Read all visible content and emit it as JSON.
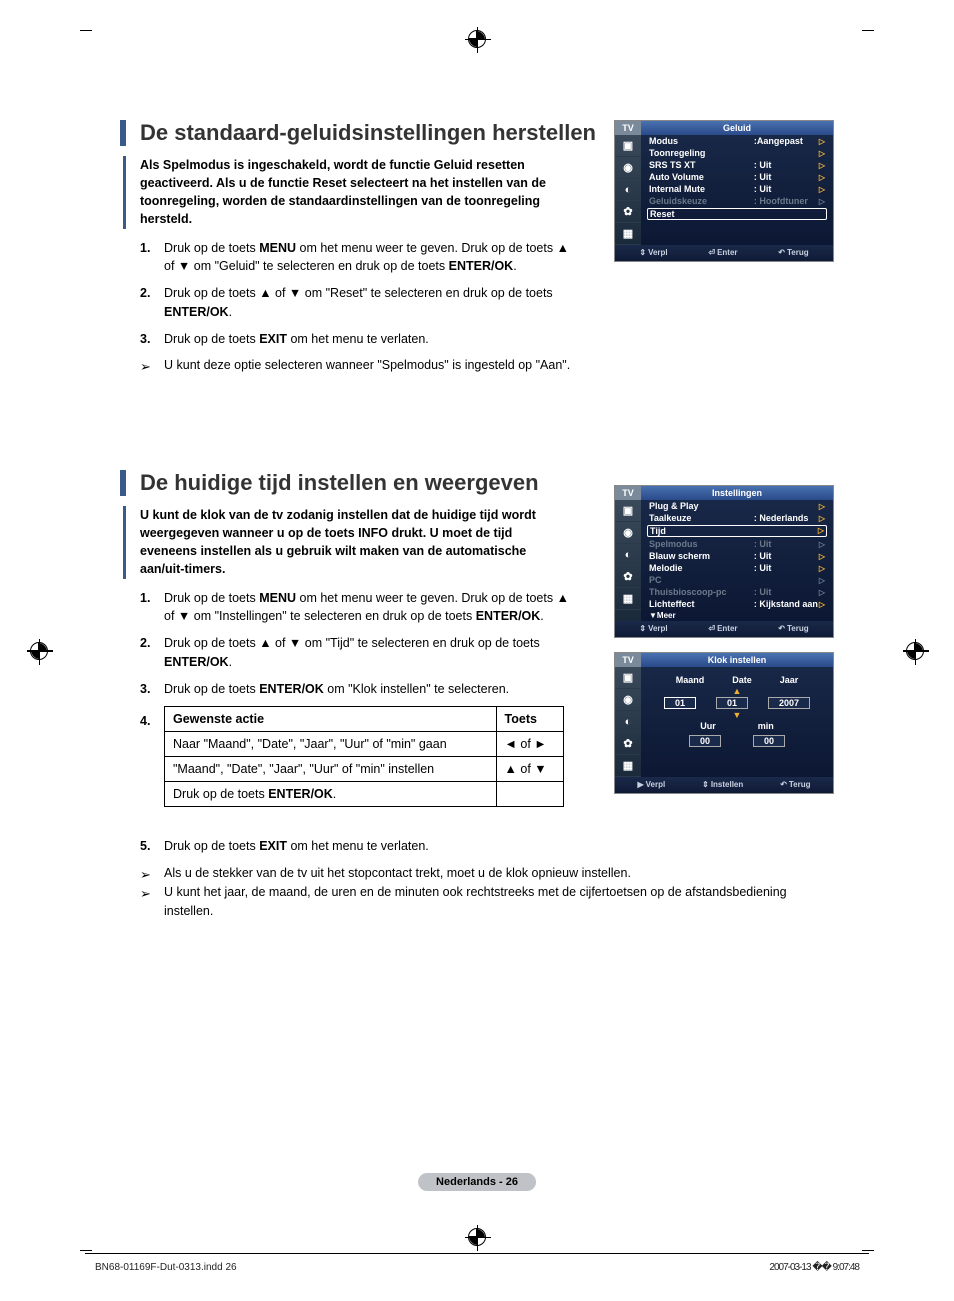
{
  "reg_color": "#000000",
  "section1": {
    "title": "De standaard-geluidsinstellingen herstellen",
    "intro": "Als Spelmodus is ingeschakeld, wordt de functie Geluid resetten geactiveerd. Als u de functie Reset selecteert na het instellen van de toonregeling, worden de standaardinstellingen van de toonregeling hersteld.",
    "steps": [
      {
        "n": "1.",
        "text": "Druk op de toets <b>MENU</b> om het menu weer te geven. Druk op de toets ▲ of ▼ om \"Geluid\" te selecteren en druk op de toets <b>ENTER/OK</b>."
      },
      {
        "n": "2.",
        "text": "Druk op de toets ▲ of ▼ om \"Reset\" te selecteren en druk op de toets <b>ENTER/OK</b>."
      },
      {
        "n": "3.",
        "text": "Druk op de toets <b>EXIT</b> om het menu te verlaten."
      }
    ],
    "note": "U kunt deze optie selecteren wanneer \"Spelmodus\" is ingesteld op \"Aan\"."
  },
  "section2": {
    "title": "De huidige tijd instellen en weergeven",
    "intro": "U kunt de klok van de tv zodanig instellen dat de huidige tijd wordt weergegeven wanneer u op de toets INFO drukt. U moet de tijd eveneens instellen als u gebruik wilt maken van de automatische aan/uit-timers.",
    "steps": [
      {
        "n": "1.",
        "text": "Druk op de toets <b>MENU</b> om het menu weer te geven. Druk op de toets ▲ of ▼ om \"Instellingen\" te selecteren en druk op de toets <b>ENTER/OK</b>."
      },
      {
        "n": "2.",
        "text": "Druk op de toets ▲ of ▼ om \"Tijd\" te selecteren en druk op de toets <b>ENTER/OK</b>."
      },
      {
        "n": "3.",
        "text": "Druk op de toets <b>ENTER/OK</b> om \"Klok instellen\" te selecteren."
      }
    ],
    "step4": "4.",
    "table": {
      "h1": "Gewenste actie",
      "h2": "Toets",
      "rows": [
        {
          "a": "Naar \"Maand\", \"Date\", \"Jaar\", \"Uur\" of \"min\" gaan",
          "t": "◄  of  ►"
        },
        {
          "a": "\"Maand\", \"Date\", \"Jaar\", \"Uur\" of \"min\" instellen",
          "t": "▲  of ▼"
        },
        {
          "a": "Druk op de toets <b>ENTER/OK</b>.",
          "t": ""
        }
      ]
    },
    "steps_after": [
      {
        "n": "5.",
        "text": "Druk op de toets <b>EXIT</b> om het menu te verlaten."
      }
    ],
    "notes": [
      "Als u de stekker van de tv uit het stopcontact trekt, moet u de klok opnieuw instellen.",
      "U kunt het jaar, de maand, de uren en de minuten ook rechtstreeks met de cijfertoetsen op de afstandsbediening instellen."
    ]
  },
  "osd1": {
    "tv": "TV",
    "title": "Geluid",
    "rows": [
      {
        "l": "Modus",
        "v": ":Aangepast",
        "dim": false
      },
      {
        "l": "Toonregeling",
        "v": "",
        "dim": false
      },
      {
        "l": "SRS TS XT",
        "v": ": Uit",
        "dim": false
      },
      {
        "l": "Auto Volume",
        "v": ": Uit",
        "dim": false
      },
      {
        "l": "Internal Mute",
        "v": ": Uit",
        "dim": false
      },
      {
        "l": "Geluidskeuze",
        "v": ": Hoofdtuner",
        "dim": true
      }
    ],
    "sel": "Reset",
    "footer": {
      "a": "Verpl",
      "b": "Enter",
      "c": "Terug"
    }
  },
  "osd2": {
    "tv": "TV",
    "title": "Instellingen",
    "rows": [
      {
        "l": "Plug & Play",
        "v": "",
        "dim": false
      },
      {
        "l": "Taalkeuze",
        "v": ": Nederlands",
        "dim": false
      }
    ],
    "sel": "Tijd",
    "rows2": [
      {
        "l": "Spelmodus",
        "v": ": Uit",
        "dim": true
      },
      {
        "l": "Blauw scherm",
        "v": ": Uit",
        "dim": false
      },
      {
        "l": "Melodie",
        "v": ": Uit",
        "dim": false
      },
      {
        "l": "PC",
        "v": "",
        "dim": true
      },
      {
        "l": "Thuisbioscoop-pc",
        "v": ": Uit",
        "dim": true
      },
      {
        "l": "Lichteffect",
        "v": ": Kijkstand aan",
        "dim": false
      }
    ],
    "more": "▼Meer",
    "footer": {
      "a": "Verpl",
      "b": "Enter",
      "c": "Terug"
    }
  },
  "osd3": {
    "tv": "TV",
    "title": "Klok instellen",
    "labels1": [
      "Maand",
      "Date",
      "Jaar"
    ],
    "vals1": [
      "01",
      "01",
      "2007"
    ],
    "labels2": [
      "Uur",
      "min"
    ],
    "vals2": [
      "00",
      "00"
    ],
    "footer": {
      "a": "Verpl",
      "b": "Instellen",
      "c": "Terug"
    }
  },
  "page_badge": "Nederlands - 26",
  "footer": {
    "left": "BN68-01169F-Dut-0313.indd   26",
    "right": "2007-03-13   �� 9:07:48"
  }
}
